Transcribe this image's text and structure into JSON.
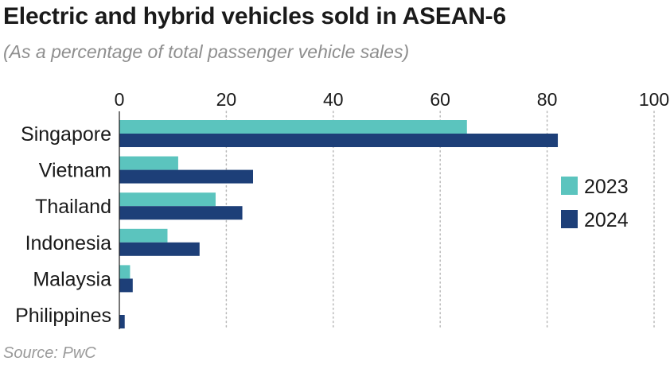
{
  "header": {
    "title": "Electric and hybrid vehicles sold in ASEAN-6",
    "subtitle": "(As a percentage of total passenger vehicle sales)"
  },
  "footer": {
    "source": "Source: PwC"
  },
  "colors": {
    "series_2023": "#5bc4be",
    "series_2024": "#1d3f78",
    "gridline": "#b8b8b8",
    "axis": "#1a1a1a"
  },
  "chart_data": {
    "type": "bar",
    "orientation": "horizontal",
    "title": "Electric and hybrid vehicles sold in ASEAN-6",
    "subtitle": "(As a percentage of total passenger vehicle sales)",
    "categories": [
      "Singapore",
      "Vietnam",
      "Thailand",
      "Indonesia",
      "Malaysia",
      "Philippines"
    ],
    "series": [
      {
        "name": "2023",
        "values": [
          65,
          11,
          18,
          9,
          2,
          0
        ]
      },
      {
        "name": "2024",
        "values": [
          82,
          25,
          23,
          15,
          2.5,
          1
        ]
      }
    ],
    "xlim": [
      0,
      100
    ],
    "xticks": [
      0,
      20,
      40,
      60,
      80,
      100
    ],
    "xtick_labels": [
      "0",
      "20",
      "40",
      "60",
      "80",
      "100"
    ],
    "grid": "vertical dotted",
    "axis_position": "top",
    "legend_position": "right",
    "xlabel": "",
    "ylabel": ""
  }
}
